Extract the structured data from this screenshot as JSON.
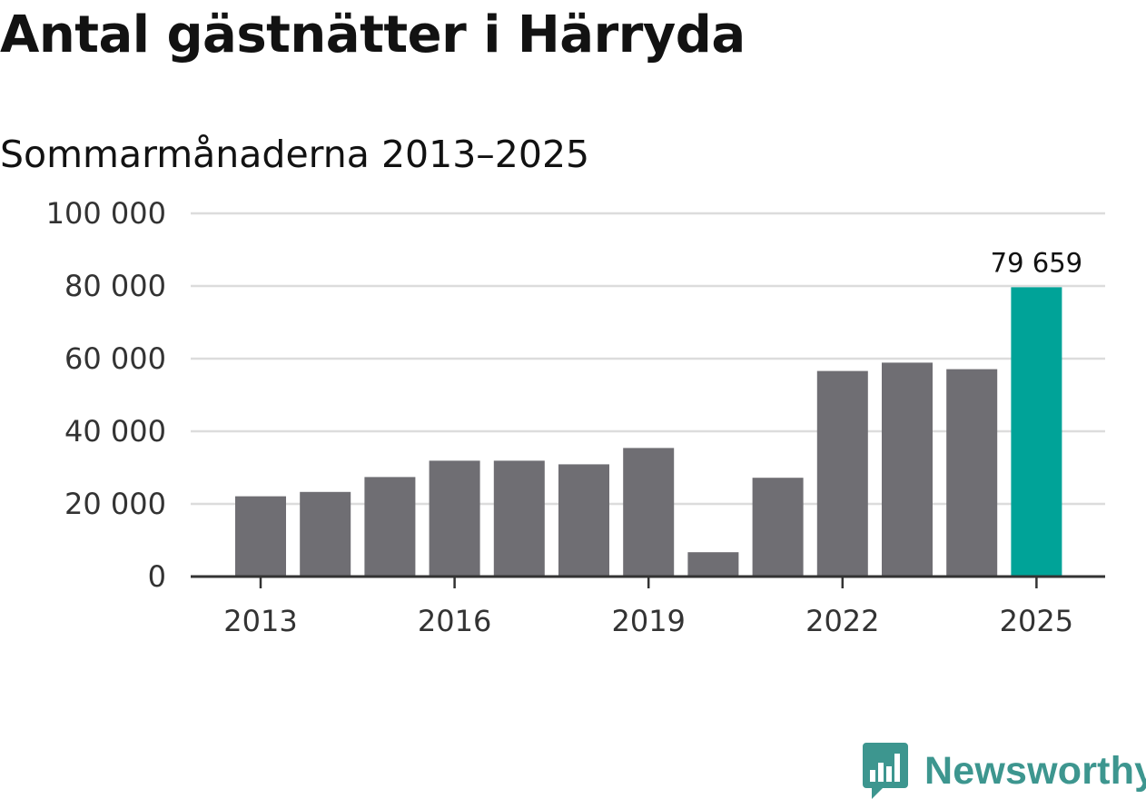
{
  "chart_data": {
    "type": "bar",
    "title": "Antal gästnätter i Härryda",
    "subtitle": "Sommarmånaderna 2013–2025",
    "categories": [
      "2013",
      "2014",
      "2015",
      "2016",
      "2017",
      "2018",
      "2019",
      "2020",
      "2021",
      "2022",
      "2023",
      "2024",
      "2025"
    ],
    "values": [
      22100,
      23300,
      27400,
      31900,
      31900,
      30900,
      35400,
      6700,
      27200,
      56600,
      58900,
      57100,
      79659
    ],
    "ylim": [
      0,
      100000
    ],
    "y_ticks": [
      0,
      20000,
      40000,
      60000,
      80000,
      100000
    ],
    "y_tick_labels": [
      "0",
      "20 000",
      "40 000",
      "60 000",
      "80 000",
      "100 000"
    ],
    "x_tick_labels": [
      "2013",
      "2016",
      "2019",
      "2022",
      "2025"
    ],
    "x_tick_years": [
      "2013",
      "2016",
      "2019",
      "2022",
      "2025"
    ],
    "data_labels": [
      {
        "category": "2025",
        "text": "79 659"
      }
    ],
    "grid": true,
    "colors": {
      "bar": "#6f6e73",
      "highlight": "#00a398",
      "grid": "#dcdcdc",
      "axis": "#333333"
    },
    "highlight_category": "2025"
  },
  "brand": {
    "name": "Newsworthy",
    "icon": "newsworthy-chart-icon",
    "color": "#3d968f"
  }
}
